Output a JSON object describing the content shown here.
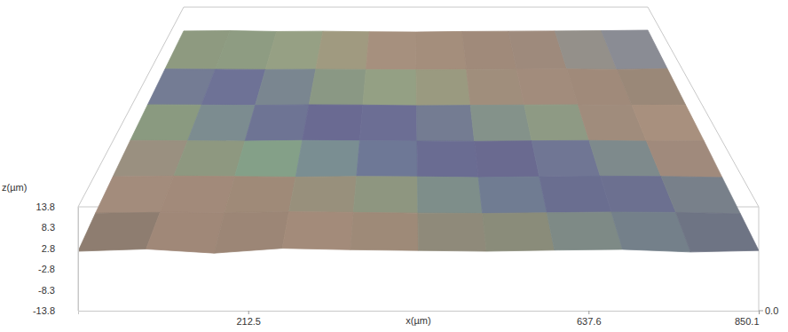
{
  "chart_data": {
    "type": "surface",
    "x_label": "x(µm)",
    "z_label": "z(µm)",
    "xlim": [
      0,
      850.1
    ],
    "ylim": [
      0,
      850.1
    ],
    "zlim": [
      -13.8,
      13.8
    ],
    "xticks": [
      212.5,
      637.6,
      850.1
    ],
    "yticks": [
      {
        "value": 0,
        "label": "0.0"
      }
    ],
    "zticks": [
      13.8,
      8.3,
      2.8,
      -2.8,
      -8.3,
      -13.8
    ],
    "x": [
      0,
      85,
      170,
      255,
      340,
      425,
      510,
      595,
      680,
      765,
      850.1
    ],
    "y": [
      0,
      140,
      280,
      420,
      560,
      700,
      850.1
    ],
    "z": [
      [
        2.0,
        2.6,
        1.5,
        2.8,
        2.4,
        2.2,
        2.0,
        2.3,
        2.5,
        1.8,
        2.2
      ],
      [
        2.8,
        3.0,
        2.9,
        3.2,
        3.0,
        2.8,
        2.7,
        2.9,
        3.1,
        3.0,
        2.6
      ],
      [
        3.2,
        3.4,
        3.3,
        3.1,
        3.3,
        3.2,
        3.0,
        3.2,
        3.4,
        3.3,
        3.0
      ],
      [
        3.6,
        3.5,
        3.4,
        3.6,
        3.5,
        3.4,
        3.3,
        3.5,
        3.6,
        3.4,
        3.5
      ],
      [
        3.9,
        3.8,
        3.7,
        3.9,
        3.8,
        3.6,
        3.7,
        3.8,
        3.9,
        3.7,
        3.8
      ],
      [
        4.2,
        4.1,
        4.0,
        4.1,
        4.0,
        3.9,
        4.0,
        4.1,
        4.2,
        4.0,
        4.3
      ],
      [
        4.5,
        4.6,
        4.3,
        4.4,
        4.2,
        4.1,
        4.3,
        4.4,
        4.5,
        4.6,
        4.8
      ]
    ],
    "colors": [
      [
        "#8e7d70",
        "#a08878",
        "#9c8676",
        "#a38b7a",
        "#9e8a78",
        "#8f8a7a",
        "#8a8c7a",
        "#7e8a86",
        "#74808a",
        "#6e7484"
      ],
      [
        "#a38c7c",
        "#a28a7a",
        "#9f8a78",
        "#98907c",
        "#8e9680",
        "#7e8e8a",
        "#707c92",
        "#6a6e90",
        "#6c7090",
        "#78808a"
      ],
      [
        "#9a9080",
        "#8e9880",
        "#84a088",
        "#7a8e92",
        "#6e7896",
        "#6a6c92",
        "#6a6a90",
        "#707694",
        "#7e8a8c",
        "#a08a7c"
      ],
      [
        "#8a9a80",
        "#7c8c90",
        "#6e7494",
        "#6a6a92",
        "#6c6e94",
        "#747c92",
        "#84928a",
        "#8e9a84",
        "#a08c7c",
        "#a8907e"
      ],
      [
        "#747c94",
        "#6e7296",
        "#7a8690",
        "#8a9884",
        "#94a084",
        "#9a9a80",
        "#a08e7c",
        "#a28c7c",
        "#a08a7a",
        "#9a8878"
      ],
      [
        "#8e9a80",
        "#8e9c82",
        "#96a084",
        "#a09a80",
        "#a6907e",
        "#a48e7c",
        "#a08a7a",
        "#9e8a7c",
        "#94908a",
        "#8a8c94"
      ]
    ]
  }
}
